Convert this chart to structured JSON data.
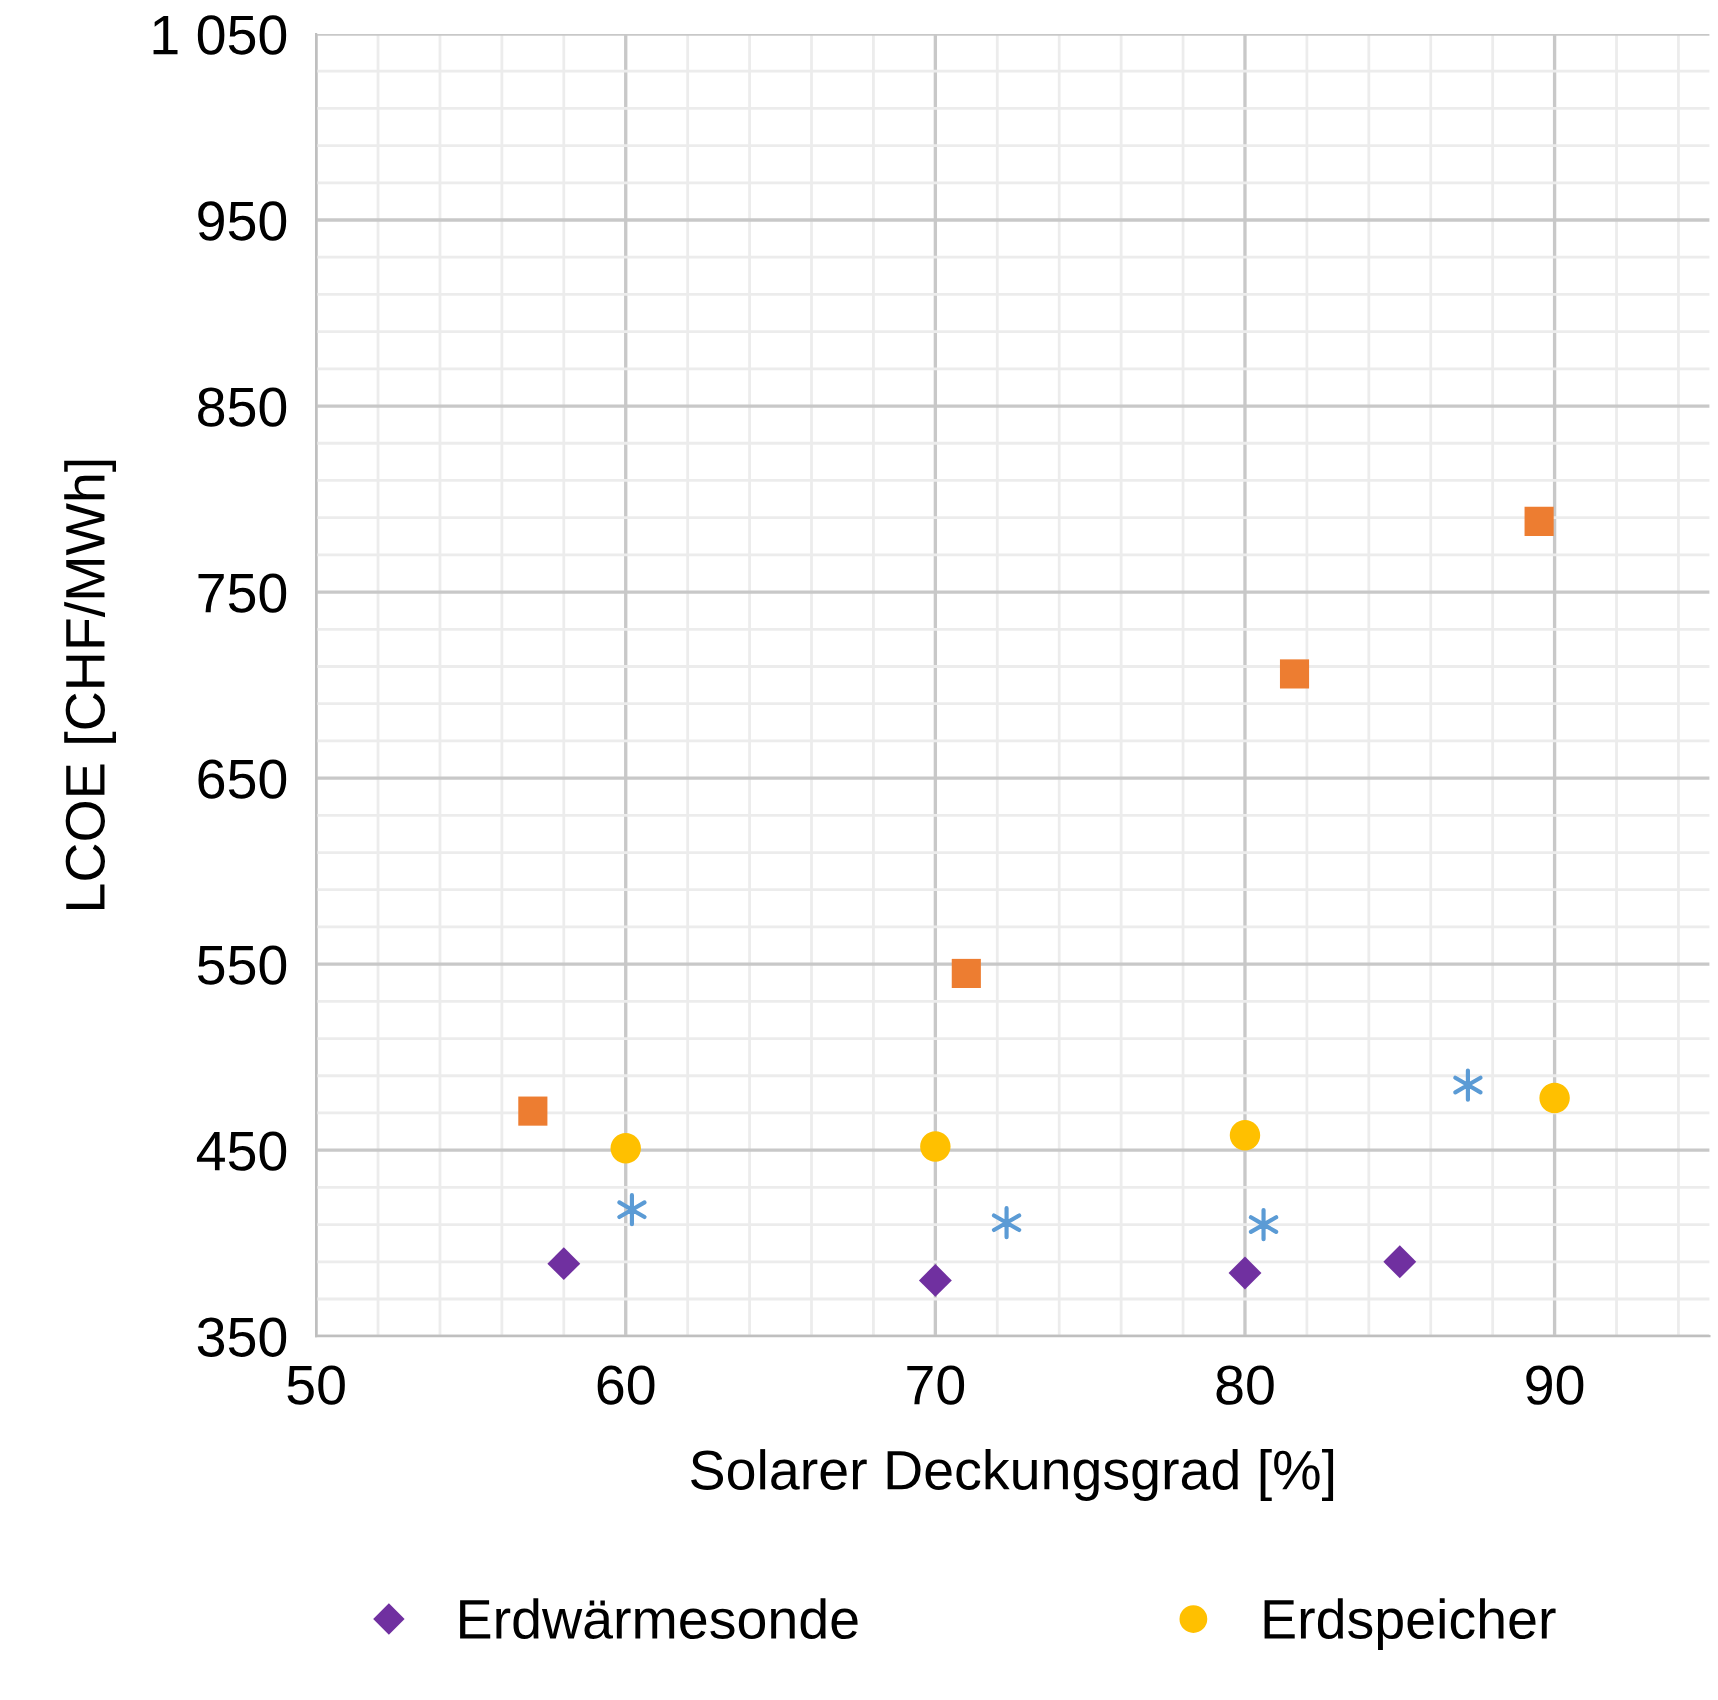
{
  "chart_data": {
    "type": "scatter",
    "xlabel": "Solarer Deckungsgrad [%]",
    "ylabel": "LCOE [CHF/MWh]",
    "xlim": [
      50,
      95
    ],
    "xticks": [
      50,
      60,
      70,
      80,
      90
    ],
    "ylim": [
      350,
      1050
    ],
    "yticks": [
      350,
      450,
      550,
      650,
      750,
      850,
      950,
      {
        "value": 1050,
        "label": "1 050"
      }
    ],
    "grid": true,
    "legend": "bottom",
    "series": [
      {
        "name": "Erdwärmesonde",
        "color": "#7030a0",
        "marker": "diamond",
        "x": [
          58,
          70,
          80,
          85
        ],
        "values": [
          389,
          380,
          384,
          390
        ]
      },
      {
        "name": "Erdspeicher",
        "color": "#ffc000",
        "marker": "circle",
        "x": [
          60,
          70,
          80,
          90
        ],
        "values": [
          451,
          452,
          458,
          478
        ]
      },
      {
        "color": "#ed7d31",
        "marker": "square",
        "x": [
          57,
          71,
          81.6,
          89.5
        ],
        "values": [
          471,
          545,
          706,
          788
        ]
      },
      {
        "color": "#5b9bd5",
        "marker": "cross",
        "x": [
          60.2,
          72.3,
          80.6,
          87.2
        ],
        "values": [
          418,
          411,
          410,
          485
        ]
      }
    ]
  }
}
